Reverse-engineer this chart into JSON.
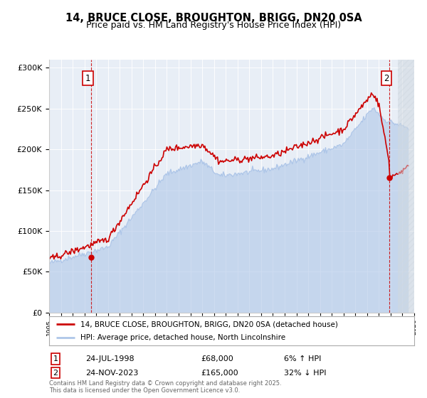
{
  "title_line1": "14, BRUCE CLOSE, BROUGHTON, BRIGG, DN20 0SA",
  "title_line2": "Price paid vs. HM Land Registry's House Price Index (HPI)",
  "legend_label1": "14, BRUCE CLOSE, BROUGHTON, BRIGG, DN20 0SA (detached house)",
  "legend_label2": "HPI: Average price, detached house, North Lincolnshire",
  "annotation1_label": "1",
  "annotation1_date": "24-JUL-1998",
  "annotation1_value": "£68,000",
  "annotation1_pct": "6% ↑ HPI",
  "annotation2_label": "2",
  "annotation2_date": "24-NOV-2023",
  "annotation2_value": "£165,000",
  "annotation2_pct": "32% ↓ HPI",
  "footer": "Contains HM Land Registry data © Crown copyright and database right 2025.\nThis data is licensed under the Open Government Licence v3.0.",
  "hpi_color": "#aec6e8",
  "price_color": "#cc0000",
  "sale1_year": 1998.56,
  "sale1_price": 68000,
  "sale2_year": 2023.9,
  "sale2_price": 165000,
  "background_color": "#e8eef6",
  "hatch_color": "#c8d0d8",
  "xlim": [
    1995,
    2026
  ],
  "ylim": [
    0,
    310000
  ]
}
